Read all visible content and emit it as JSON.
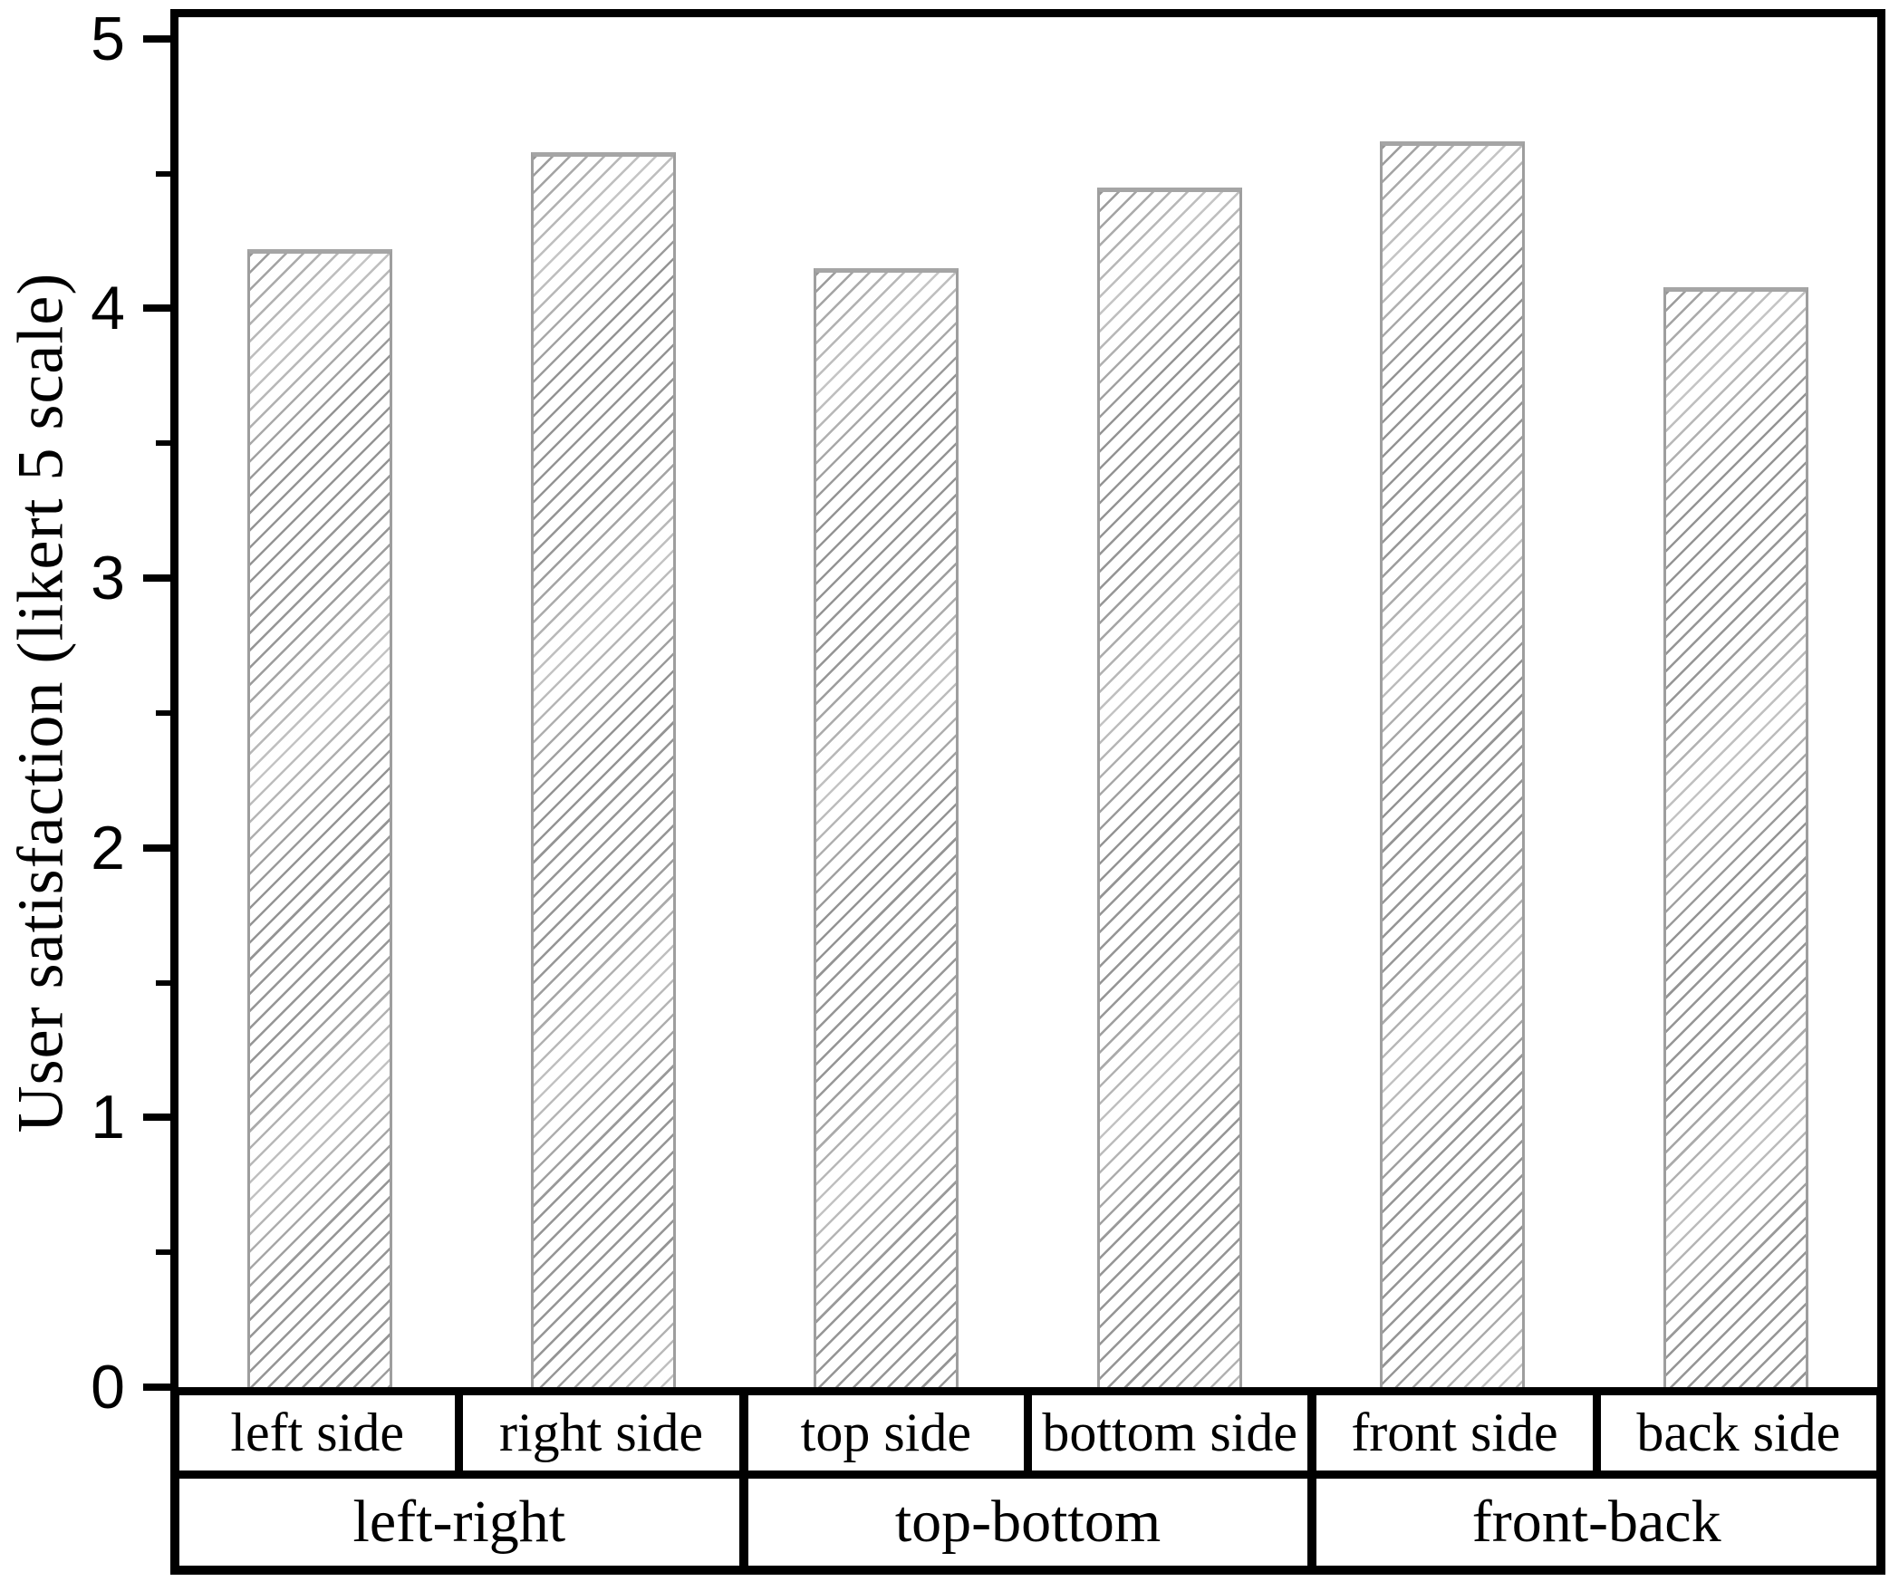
{
  "figure": {
    "background": "#ffffff"
  },
  "chart_data": {
    "type": "bar",
    "title": "",
    "xlabel": "",
    "ylabel": "User satisfaction (likert 5 scale)",
    "ylim": [
      0,
      5.08
    ],
    "yticks": [
      0,
      1,
      2,
      3,
      4,
      5
    ],
    "minor_tick_step": 0.5,
    "grid": false,
    "legend": null,
    "categories": [
      "left side",
      "right side",
      "top side",
      "bottom side",
      "front side",
      "back side"
    ],
    "values": [
      4.22,
      4.58,
      4.15,
      4.45,
      4.62,
      4.08
    ],
    "series": [
      {
        "name": "User satisfaction",
        "values": [
          4.22,
          4.58,
          4.15,
          4.45,
          4.62,
          4.08
        ]
      }
    ],
    "groups": [
      {
        "label": "left-right",
        "categories": [
          "left side",
          "right side"
        ]
      },
      {
        "label": "top-bottom",
        "categories": [
          "top side",
          "bottom side"
        ]
      },
      {
        "label": "front-back",
        "categories": [
          "front side",
          "back side"
        ]
      }
    ],
    "bar_style": {
      "fill": "#ffffff",
      "hatch": "forward-diagonal",
      "hatch_color": "#8f8f8f",
      "border_color": "#9e9e9e"
    },
    "axis_color": "#000000",
    "text_color": "#000000"
  }
}
